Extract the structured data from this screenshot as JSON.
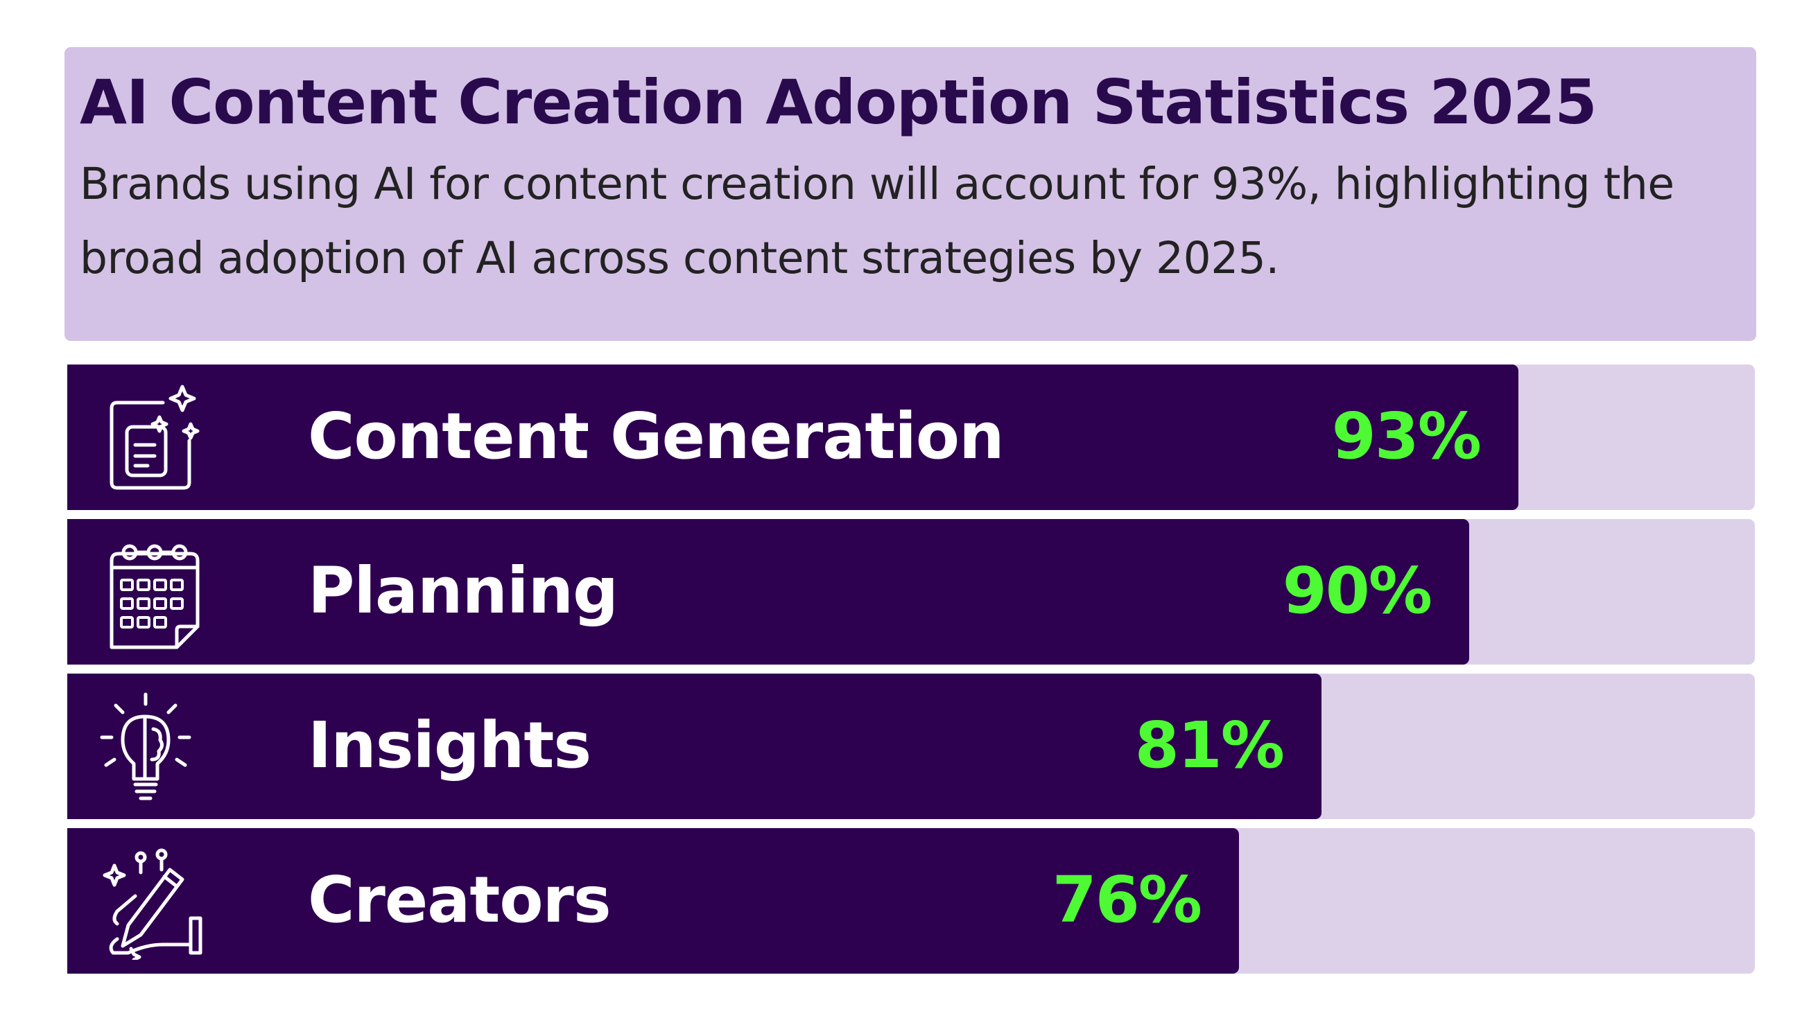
{
  "header": {
    "title": "AI Content Creation Adoption Statistics 2025",
    "subtitle": "Brands using AI for content creation will account for 93%, highlighting the broad adoption of AI across content strategies by 2025."
  },
  "colors": {
    "header_bg": "#d4c1e6",
    "bar": "#2e0050",
    "track": "#ddd1ea",
    "value_text": "#4dfa33",
    "label_text": "#ffffff"
  },
  "chart_data": {
    "type": "bar",
    "orientation": "horizontal",
    "categories": [
      "Content Generation",
      "Planning",
      "Insights",
      "Creators"
    ],
    "values": [
      93,
      90,
      81,
      76
    ],
    "value_labels": [
      "93%",
      "90%",
      "81%",
      "76%"
    ],
    "icons": [
      "document-sparkle-icon",
      "calendar-icon",
      "lightbulb-brain-icon",
      "hand-pencil-icon"
    ],
    "xlim": [
      0,
      100
    ],
    "grid": false,
    "legend": "none"
  }
}
